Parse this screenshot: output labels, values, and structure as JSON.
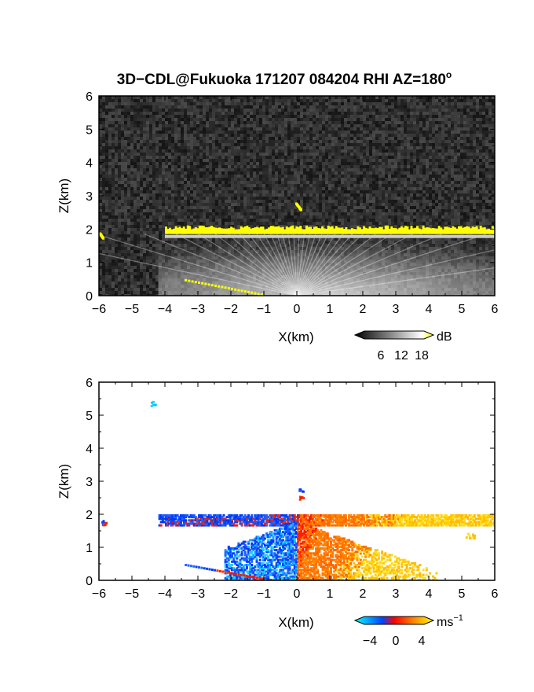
{
  "title": "3D−CDL@Fukuoka 171207 084204 RHI AZ=180",
  "title_degree": "o",
  "chart_data": [
    {
      "type": "heatmap",
      "name": "backscatter",
      "xlabel": "X(km)",
      "ylabel": "Z(km)",
      "xlim": [
        -6,
        6
      ],
      "ylim": [
        0,
        6
      ],
      "x_ticks": [
        "−6",
        "−5",
        "−4",
        "−3",
        "−2",
        "−1",
        "0",
        "1",
        "2",
        "3",
        "4",
        "5",
        "6"
      ],
      "y_ticks": [
        "0",
        "1",
        "2",
        "3",
        "4",
        "5",
        "6"
      ],
      "colorbar": {
        "unit": "dB",
        "ticks": [
          "6",
          "12",
          "18"
        ],
        "range": [
          0,
          20
        ],
        "colors": [
          "#000000",
          "#ffffff",
          "#ffff00"
        ]
      },
      "background": "#2b2b2b",
      "cloud_layer": {
        "x_from": -4.0,
        "x_to": 6.0,
        "z_base": 1.85,
        "z_top": 2.05,
        "color": "#ffff00"
      },
      "fan_origin": [
        0,
        0
      ],
      "features": [
        {
          "label": "cloud",
          "x": [
            -6.0,
            -5.9
          ],
          "z": [
            1.75,
            1.9
          ]
        },
        {
          "label": "plume",
          "x": [
            -0.05,
            0.1
          ],
          "z": [
            2.6,
            2.8
          ]
        },
        {
          "label": "low",
          "x": [
            -3.4,
            -1.0
          ],
          "z": [
            0.05,
            0.5
          ]
        }
      ]
    },
    {
      "type": "heatmap",
      "name": "doppler_velocity",
      "xlabel": "X(km)",
      "ylabel": "Z(km)",
      "xlim": [
        -6,
        6
      ],
      "ylim": [
        0,
        6
      ],
      "x_ticks": [
        "−6",
        "−5",
        "−4",
        "−3",
        "−2",
        "−1",
        "0",
        "1",
        "2",
        "3",
        "4",
        "5",
        "6"
      ],
      "y_ticks": [
        "0",
        "1",
        "2",
        "3",
        "4",
        "5",
        "6"
      ],
      "colorbar": {
        "unit": "ms",
        "unit_exp": "−1",
        "ticks": [
          "−4",
          "0",
          "4"
        ],
        "range": [
          -5,
          5
        ],
        "colors": [
          "#00ffff",
          "#0000ff",
          "#ff0000",
          "#ffff00"
        ]
      },
      "background": "#ffffff",
      "velocity_pattern": {
        "left_of_zero": "negative",
        "right_of_zero": "positive",
        "layer_z": [
          1.7,
          2.05
        ]
      }
    }
  ]
}
